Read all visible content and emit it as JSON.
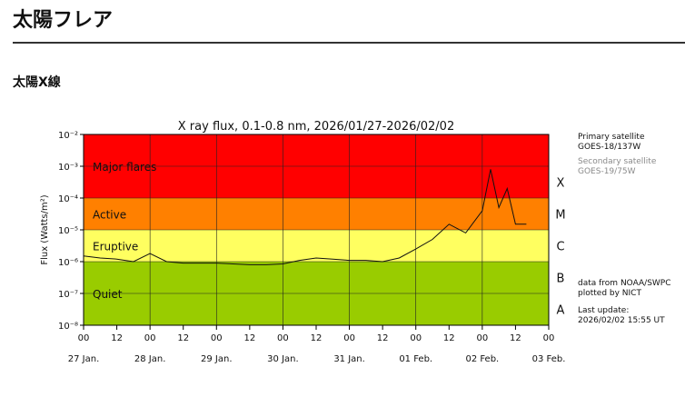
{
  "page": {
    "title": "太陽フレア",
    "section_title": "太陽X線"
  },
  "side_info": {
    "primary_label": "Primary satellite",
    "primary_name": "GOES-18/137W",
    "secondary_label": "Secondary satellite",
    "secondary_name": "GOES-19/75W",
    "data_from": "data from NOAA/SWPC",
    "plotted_by": "plotted by NICT",
    "last_update_label": "Last update:",
    "last_update_value": "2026/02/02 15:55 UT"
  },
  "colors": {
    "major": "#ff0000",
    "active": "#ff8000",
    "eruptive": "#ffff60",
    "quiet": "#99cc00",
    "primary_line": "#111111",
    "secondary_line": "#999999"
  },
  "chart_data": {
    "type": "line",
    "title": "X ray flux, 0.1-0.8 nm, 2026/01/27-2026/02/02",
    "ylabel": "Flux (Watts/m²)",
    "y_scale": "log",
    "ylim": [
      1e-08,
      0.01
    ],
    "xlim": [
      "2026-01-27 00:00",
      "2026-02-03 00:00"
    ],
    "y_ticks": [
      "10⁻⁸",
      "10⁻⁷",
      "10⁻⁶",
      "10⁻⁵",
      "10⁻⁴",
      "10⁻³",
      "10⁻²"
    ],
    "x_hour_ticks": [
      "00",
      "12",
      "00",
      "12",
      "00",
      "12",
      "00",
      "12",
      "00",
      "12",
      "00",
      "12",
      "00",
      "12",
      "00"
    ],
    "x_day_labels": [
      "27 Jan.",
      "28 Jan.",
      "29 Jan.",
      "30 Jan.",
      "31 Jan.",
      "01 Feb.",
      "02 Feb.",
      "03 Feb."
    ],
    "bands": [
      {
        "label": "Major flares",
        "from": 0.0001,
        "to": 0.01
      },
      {
        "label": "Active",
        "from": 1e-05,
        "to": 0.0001
      },
      {
        "label": "Eruptive",
        "from": 1e-06,
        "to": 1e-05
      },
      {
        "label": "Quiet",
        "from": 1e-08,
        "to": 1e-06
      }
    ],
    "class_labels": [
      {
        "label": "A",
        "flux": 1e-08
      },
      {
        "label": "B",
        "flux": 1e-07
      },
      {
        "label": "C",
        "flux": 1e-06
      },
      {
        "label": "M",
        "flux": 1e-05
      },
      {
        "label": "X",
        "flux": 0.0001
      }
    ],
    "grid": true,
    "series": [
      {
        "name": "GOES-18/137W",
        "x": [
          "2026-01-27 00:00",
          "2026-01-27 06:00",
          "2026-01-27 12:00",
          "2026-01-27 18:00",
          "2026-01-28 00:00",
          "2026-01-28 06:00",
          "2026-01-28 12:00",
          "2026-01-28 18:00",
          "2026-01-29 00:00",
          "2026-01-29 06:00",
          "2026-01-29 12:00",
          "2026-01-29 18:00",
          "2026-01-30 00:00",
          "2026-01-30 06:00",
          "2026-01-30 12:00",
          "2026-01-30 18:00",
          "2026-01-31 00:00",
          "2026-01-31 06:00",
          "2026-01-31 12:00",
          "2026-01-31 18:00",
          "2026-02-01 00:00",
          "2026-02-01 06:00",
          "2026-02-01 12:00",
          "2026-02-01 18:00",
          "2026-02-02 00:00",
          "2026-02-02 03:00",
          "2026-02-02 06:00",
          "2026-02-02 09:00",
          "2026-02-02 12:00",
          "2026-02-02 15:55"
        ],
        "values": [
          1.5e-06,
          1.3e-06,
          1.2e-06,
          1e-06,
          1.8e-06,
          1e-06,
          9e-07,
          9e-07,
          9e-07,
          8.5e-07,
          8e-07,
          8e-07,
          8.5e-07,
          1.1e-06,
          1.3e-06,
          1.2e-06,
          1.1e-06,
          1.1e-06,
          1e-06,
          1.3e-06,
          2.5e-06,
          5e-06,
          1.5e-05,
          8e-06,
          4e-05,
          0.0008,
          5e-05,
          0.0002,
          1.5e-05,
          1.5e-05
        ]
      }
    ]
  }
}
